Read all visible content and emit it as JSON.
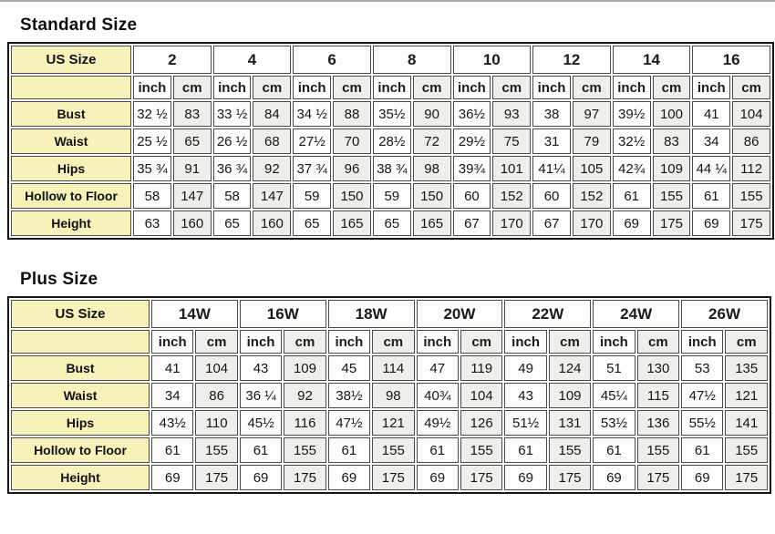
{
  "units": {
    "inch": "inch",
    "cm": "cm"
  },
  "colors": {
    "label_bg": "#f6f2ba",
    "cm_cell_bg": "#eeeeea",
    "inch_cell_bg": "#fdfdfd",
    "grid_border": "#4a4a4a",
    "outer_border": "#161616"
  },
  "standard": {
    "title": "Standard Size",
    "us_size_label": "US Size",
    "sizes": [
      "2",
      "4",
      "6",
      "8",
      "10",
      "12",
      "14",
      "16"
    ],
    "rows": [
      {
        "label": "Bust",
        "values": [
          [
            "32 ½",
            "83"
          ],
          [
            "33 ½",
            "84"
          ],
          [
            "34 ½",
            "88"
          ],
          [
            "35½",
            "90"
          ],
          [
            "36½",
            "93"
          ],
          [
            "38",
            "97"
          ],
          [
            "39½",
            "100"
          ],
          [
            "41",
            "104"
          ]
        ]
      },
      {
        "label": "Waist",
        "values": [
          [
            "25 ½",
            "65"
          ],
          [
            "26 ½",
            "68"
          ],
          [
            "27½",
            "70"
          ],
          [
            "28½",
            "72"
          ],
          [
            "29½",
            "75"
          ],
          [
            "31",
            "79"
          ],
          [
            "32½",
            "83"
          ],
          [
            "34",
            "86"
          ]
        ]
      },
      {
        "label": "Hips",
        "values": [
          [
            "35 ¾",
            "91"
          ],
          [
            "36 ¾",
            "92"
          ],
          [
            "37 ¾",
            "96"
          ],
          [
            "38 ¾",
            "98"
          ],
          [
            "39¾",
            "101"
          ],
          [
            "41¼",
            "105"
          ],
          [
            "42¾",
            "109"
          ],
          [
            "44 ¼",
            "112"
          ]
        ]
      },
      {
        "label": "Hollow to Floor",
        "values": [
          [
            "58",
            "147"
          ],
          [
            "58",
            "147"
          ],
          [
            "59",
            "150"
          ],
          [
            "59",
            "150"
          ],
          [
            "60",
            "152"
          ],
          [
            "60",
            "152"
          ],
          [
            "61",
            "155"
          ],
          [
            "61",
            "155"
          ]
        ]
      },
      {
        "label": "Height",
        "values": [
          [
            "63",
            "160"
          ],
          [
            "65",
            "160"
          ],
          [
            "65",
            "165"
          ],
          [
            "65",
            "165"
          ],
          [
            "67",
            "170"
          ],
          [
            "67",
            "170"
          ],
          [
            "69",
            "175"
          ],
          [
            "69",
            "175"
          ]
        ]
      }
    ]
  },
  "plus": {
    "title": "Plus Size",
    "us_size_label": "US Size",
    "sizes": [
      "14W",
      "16W",
      "18W",
      "20W",
      "22W",
      "24W",
      "26W"
    ],
    "rows": [
      {
        "label": "Bust",
        "values": [
          [
            "41",
            "104"
          ],
          [
            "43",
            "109"
          ],
          [
            "45",
            "114"
          ],
          [
            "47",
            "119"
          ],
          [
            "49",
            "124"
          ],
          [
            "51",
            "130"
          ],
          [
            "53",
            "135"
          ]
        ]
      },
      {
        "label": "Waist",
        "values": [
          [
            "34",
            "86"
          ],
          [
            "36 ¼",
            "92"
          ],
          [
            "38½",
            "98"
          ],
          [
            "40¾",
            "104"
          ],
          [
            "43",
            "109"
          ],
          [
            "45¼",
            "115"
          ],
          [
            "47½",
            "121"
          ]
        ]
      },
      {
        "label": "Hips",
        "values": [
          [
            "43½",
            "110"
          ],
          [
            "45½",
            "116"
          ],
          [
            "47½",
            "121"
          ],
          [
            "49½",
            "126"
          ],
          [
            "51½",
            "131"
          ],
          [
            "53½",
            "136"
          ],
          [
            "55½",
            "141"
          ]
        ]
      },
      {
        "label": "Hollow to Floor",
        "values": [
          [
            "61",
            "155"
          ],
          [
            "61",
            "155"
          ],
          [
            "61",
            "155"
          ],
          [
            "61",
            "155"
          ],
          [
            "61",
            "155"
          ],
          [
            "61",
            "155"
          ],
          [
            "61",
            "155"
          ]
        ]
      },
      {
        "label": "Height",
        "values": [
          [
            "69",
            "175"
          ],
          [
            "69",
            "175"
          ],
          [
            "69",
            "175"
          ],
          [
            "69",
            "175"
          ],
          [
            "69",
            "175"
          ],
          [
            "69",
            "175"
          ],
          [
            "69",
            "175"
          ]
        ]
      }
    ]
  }
}
